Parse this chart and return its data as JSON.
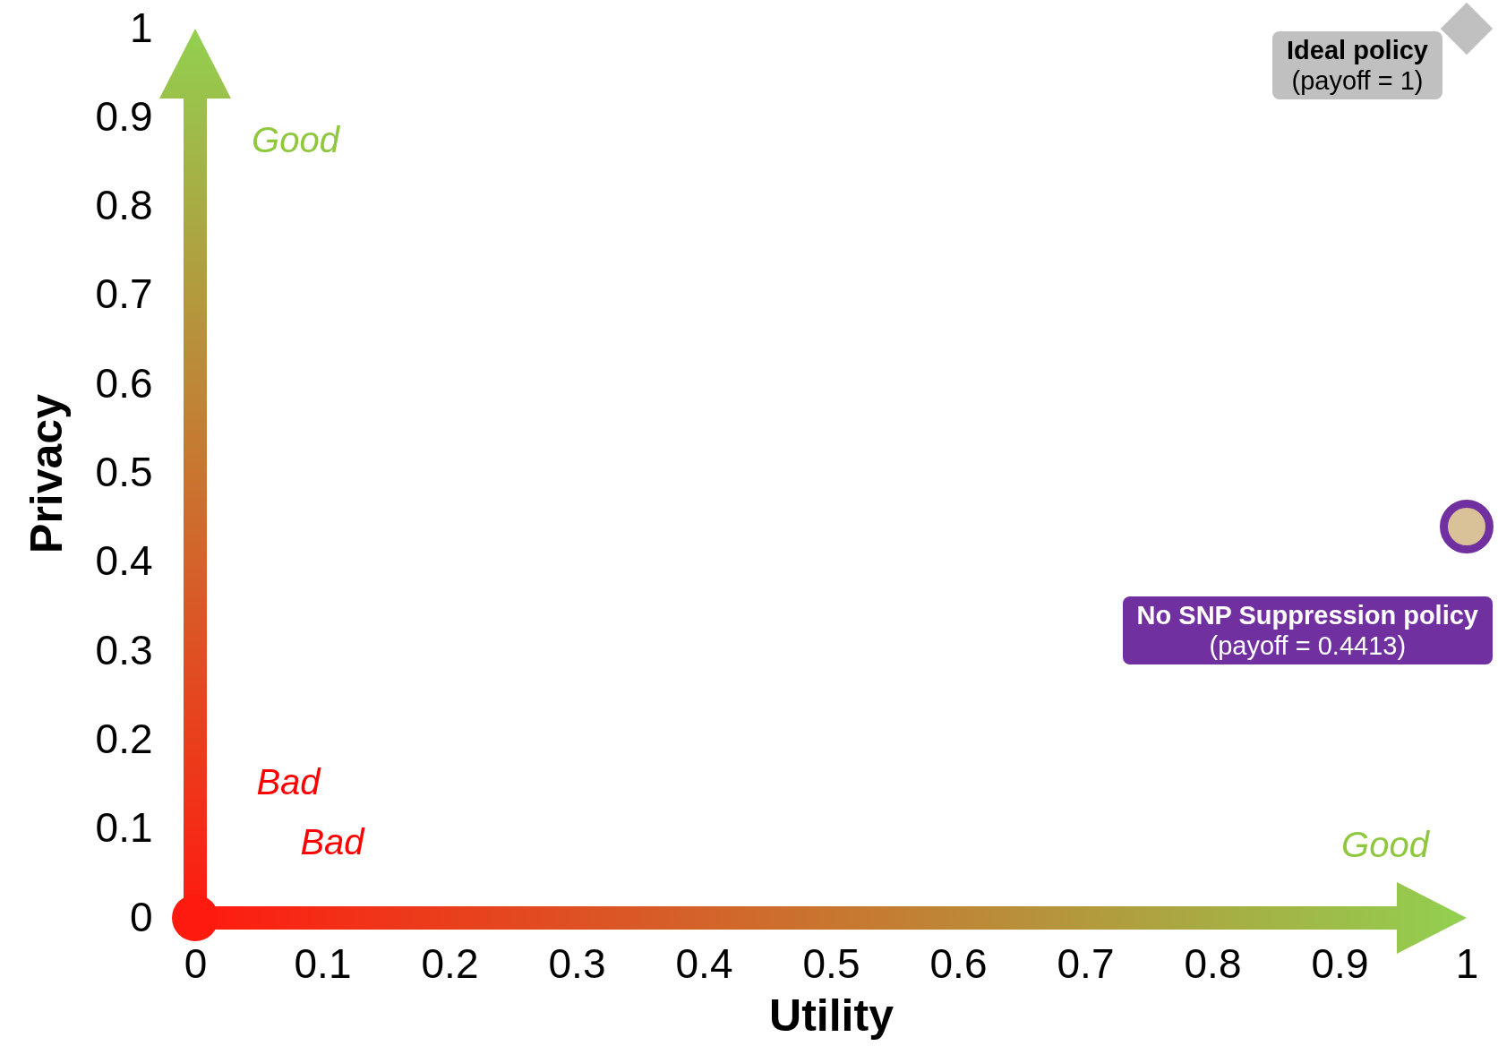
{
  "chart_data": {
    "type": "scatter",
    "xlabel": "Utility",
    "ylabel": "Privacy",
    "xlim": [
      0,
      1
    ],
    "ylim": [
      0,
      1
    ],
    "xticks": [
      0,
      0.1,
      0.2,
      0.3,
      0.4,
      0.5,
      0.6,
      0.7,
      0.8,
      0.9,
      1
    ],
    "yticks": [
      0,
      0.1,
      0.2,
      0.3,
      0.4,
      0.5,
      0.6,
      0.7,
      0.8,
      0.9,
      1
    ],
    "grid": false,
    "series": [
      {
        "name": "Ideal policy",
        "color": "#c0c0c0",
        "marker": "diamond",
        "x": [
          1
        ],
        "values": [
          1
        ]
      },
      {
        "name": "No SNP Suppression policy",
        "color": "#7030a0",
        "marker": "circle",
        "x": [
          1
        ],
        "values": [
          0.44
        ]
      }
    ],
    "annotations": [
      "(payoff = 1)",
      "(payoff = 0.4413)",
      "Good",
      "Good",
      "Bad",
      "Bad"
    ]
  }
}
